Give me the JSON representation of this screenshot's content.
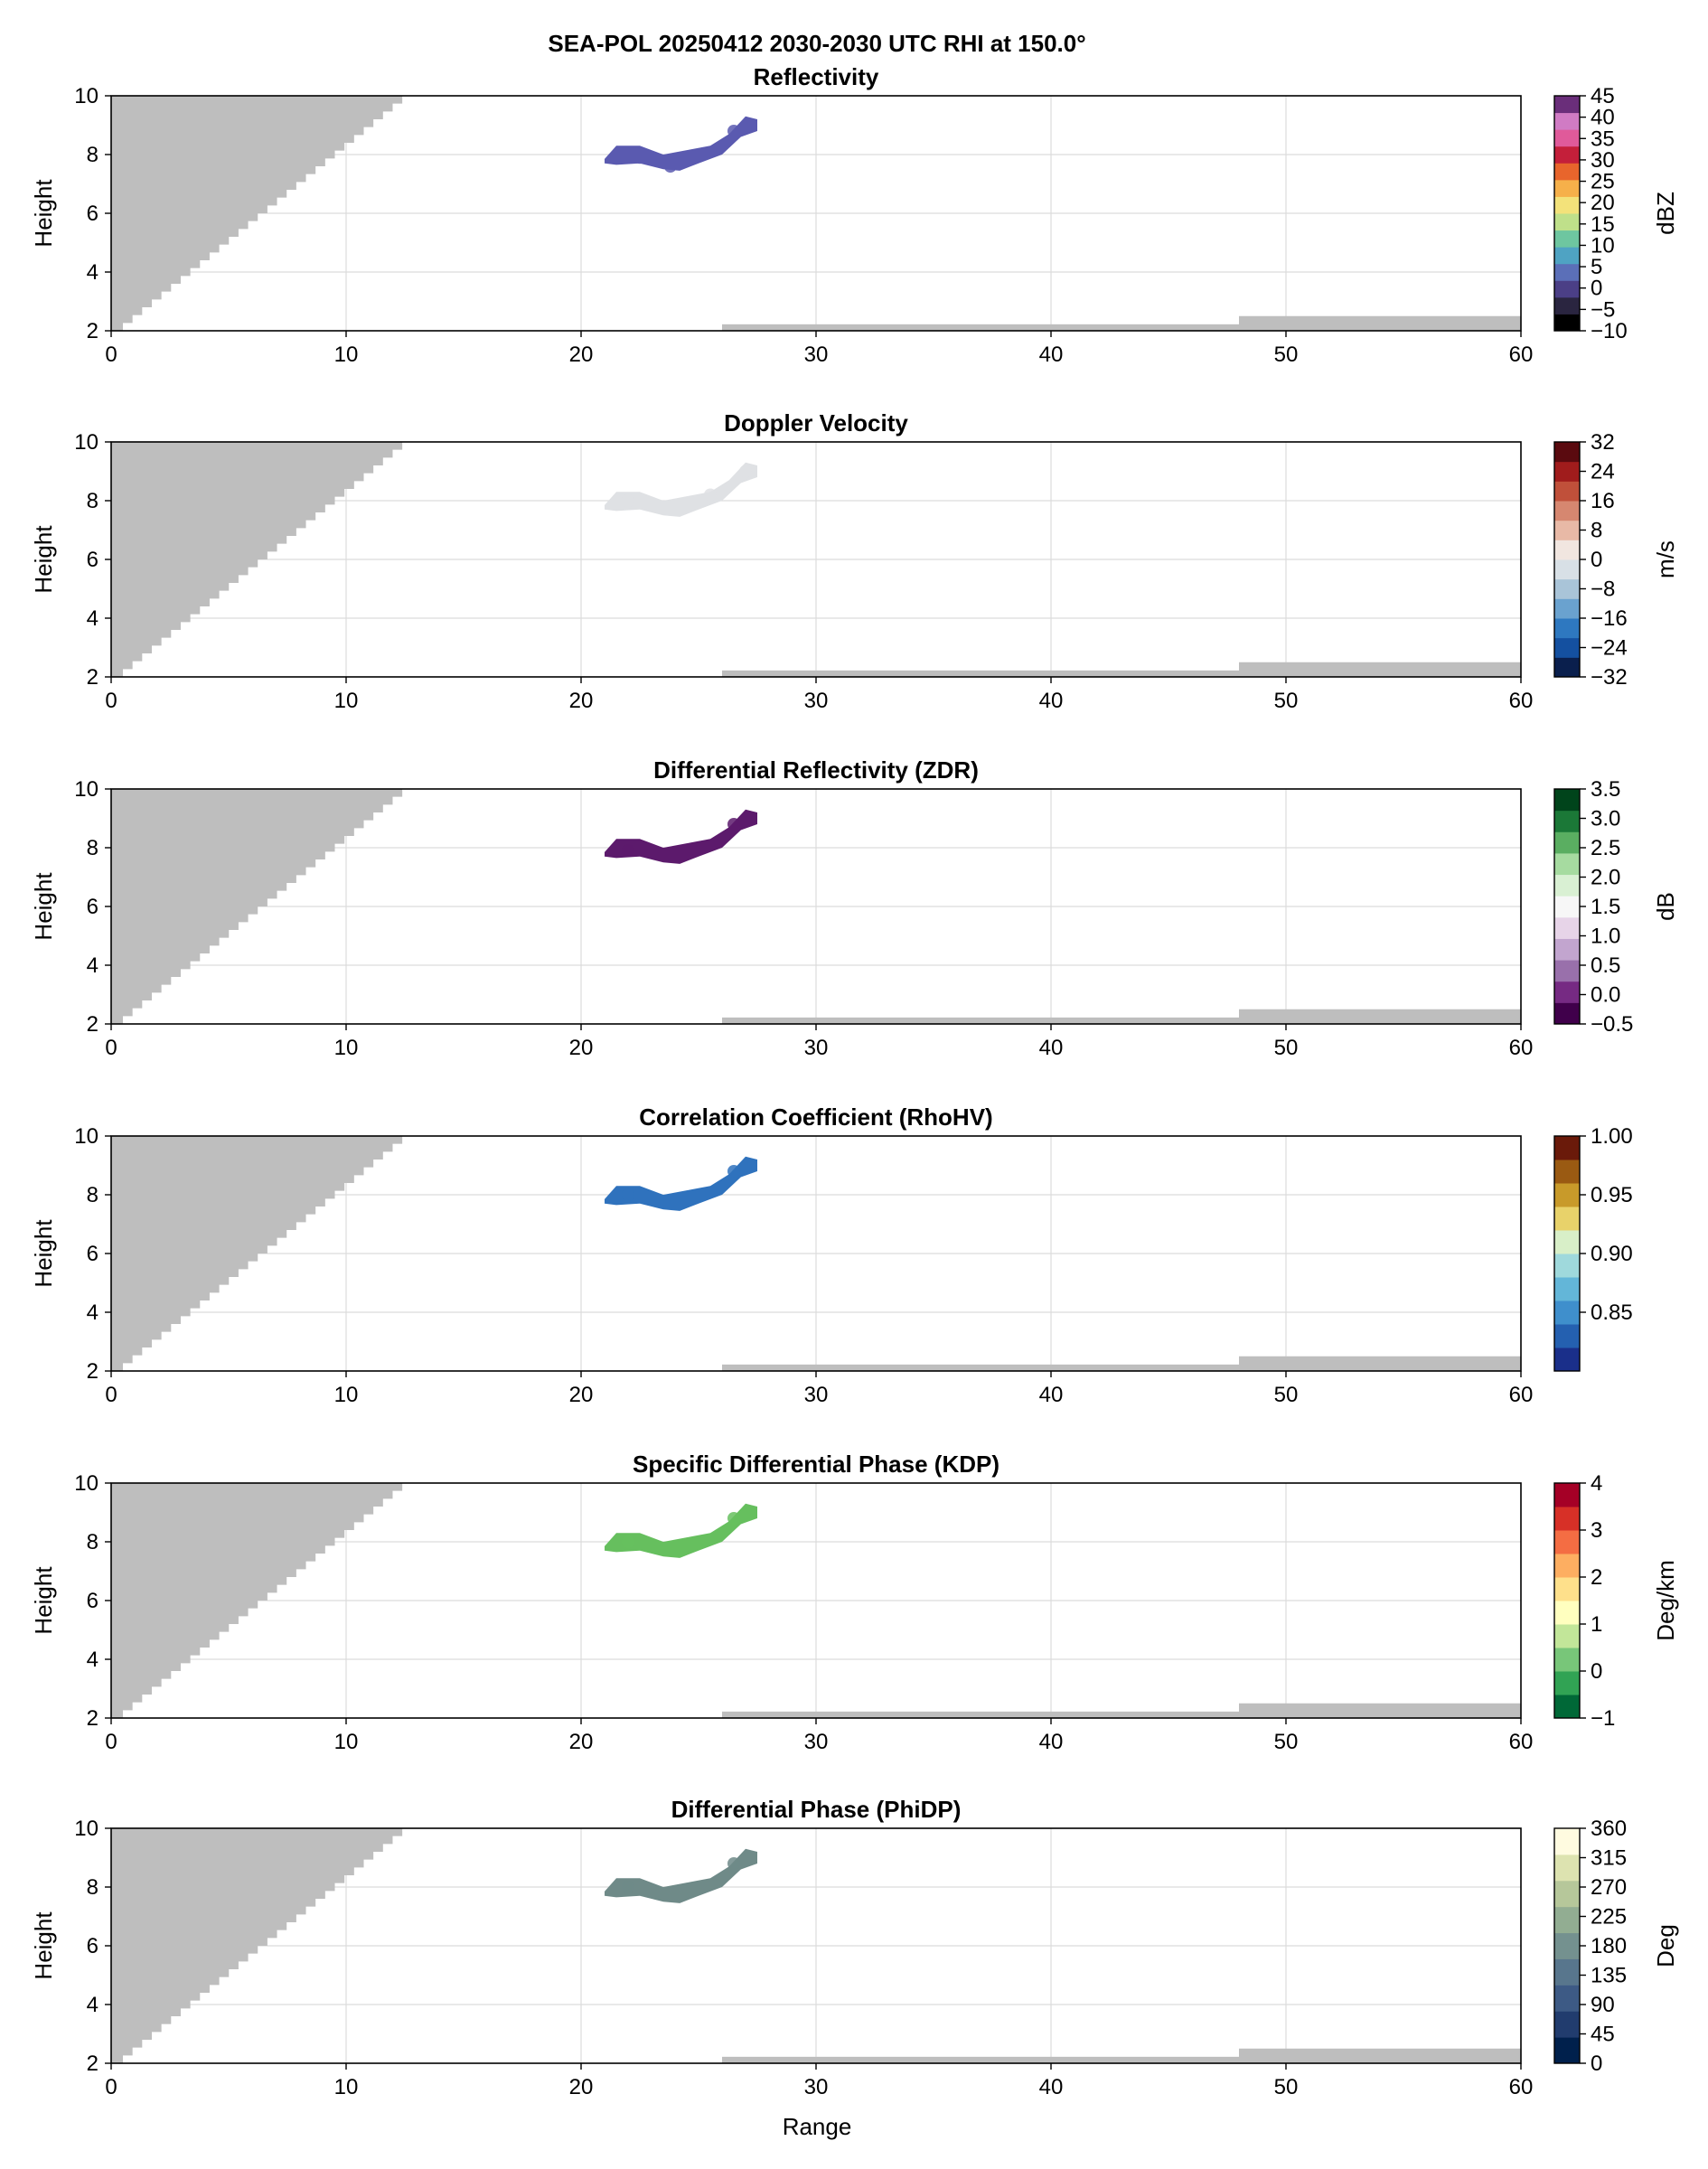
{
  "figure": {
    "title": "SEA-POL 20250412 2030-2030 UTC RHI at 150.0°",
    "xlabel": "Range"
  },
  "chart_data": [
    {
      "type": "heatmap",
      "title": "Reflectivity",
      "xlabel": "",
      "ylabel": "Height",
      "xlim": [
        0,
        60
      ],
      "ylim": [
        2,
        10
      ],
      "xticks": [
        "0",
        "10",
        "20",
        "30",
        "40",
        "50",
        "60"
      ],
      "yticks": [
        "2",
        "4",
        "6",
        "8",
        "10"
      ],
      "grid": true,
      "colorbar": {
        "label": "dBZ",
        "ticks": [
          "45",
          "40",
          "35",
          "30",
          "25",
          "20",
          "15",
          "10",
          "5",
          "0",
          "−5",
          "−10"
        ],
        "range": [
          -10,
          45
        ],
        "colors": [
          "#000000",
          "#2a2540",
          "#4b3f86",
          "#5b6fb8",
          "#4fa3c3",
          "#6ec6a0",
          "#bfe08a",
          "#f3e27a",
          "#f6b04a",
          "#e8652c",
          "#c41f3a",
          "#e05a9a",
          "#d07bc4",
          "#6a2e7a"
        ]
      },
      "echo_color": "#5a5ab0",
      "echo_cells": [
        {
          "range": 22.5,
          "height": 7.9,
          "value": 5
        },
        {
          "range": 23.8,
          "height": 7.6,
          "value": 8
        },
        {
          "range": 26.5,
          "height": 8.8,
          "value": 2
        }
      ]
    },
    {
      "type": "heatmap",
      "title": "Doppler Velocity",
      "xlabel": "",
      "ylabel": "Height",
      "xlim": [
        0,
        60
      ],
      "ylim": [
        2,
        10
      ],
      "xticks": [
        "0",
        "10",
        "20",
        "30",
        "40",
        "50",
        "60"
      ],
      "yticks": [
        "2",
        "4",
        "6",
        "8",
        "10"
      ],
      "grid": true,
      "colorbar": {
        "label": "m/s",
        "ticks": [
          "32",
          "24",
          "16",
          "8",
          "0",
          "−8",
          "−16",
          "−24",
          "−32"
        ],
        "range": [
          -32,
          32
        ],
        "colors": [
          "#0a1f4d",
          "#1450a0",
          "#2e78c0",
          "#6aa2cf",
          "#a9c4d8",
          "#d8e0e6",
          "#f1e6e0",
          "#e8b9a6",
          "#d68770",
          "#c0503a",
          "#a01c1c",
          "#5a0a0f"
        ]
      },
      "echo_color": "#dfe1e4",
      "echo_cells": [
        {
          "range": 22.0,
          "height": 8.0,
          "value": 2
        },
        {
          "range": 25.5,
          "height": 8.2,
          "value": -2
        },
        {
          "range": 27.0,
          "height": 9.0,
          "value": 3
        }
      ]
    },
    {
      "type": "heatmap",
      "title": "Differential Reflectivity (ZDR)",
      "xlabel": "",
      "ylabel": "Height",
      "xlim": [
        0,
        60
      ],
      "ylim": [
        2,
        10
      ],
      "xticks": [
        "0",
        "10",
        "20",
        "30",
        "40",
        "50",
        "60"
      ],
      "yticks": [
        "2",
        "4",
        "6",
        "8",
        "10"
      ],
      "grid": true,
      "colorbar": {
        "label": "dB",
        "ticks": [
          "3.5",
          "3.0",
          "2.5",
          "2.0",
          "1.5",
          "1.0",
          "0.5",
          "0.0",
          "−0.5"
        ],
        "range": [
          -0.5,
          3.5
        ],
        "colors": [
          "#40004b",
          "#762a83",
          "#9970ab",
          "#c2a5cf",
          "#e7d4e8",
          "#f7f7f7",
          "#d9f0d3",
          "#a6dba0",
          "#5aae61",
          "#1b7837",
          "#00441b"
        ]
      },
      "echo_color": "#5c1a6c",
      "echo_cells": [
        {
          "range": 22.0,
          "height": 7.9,
          "value": -0.3
        },
        {
          "range": 26.5,
          "height": 8.8,
          "value": 0.0
        }
      ]
    },
    {
      "type": "heatmap",
      "title": "Correlation Coefficient (RhoHV)",
      "xlabel": "",
      "ylabel": "Height",
      "xlim": [
        0,
        60
      ],
      "ylim": [
        2,
        10
      ],
      "xticks": [
        "0",
        "10",
        "20",
        "30",
        "40",
        "50",
        "60"
      ],
      "yticks": [
        "2",
        "4",
        "6",
        "8",
        "10"
      ],
      "grid": true,
      "colorbar": {
        "label": "",
        "ticks": [
          "1.00",
          "0.95",
          "0.90",
          "0.85"
        ],
        "range": [
          0.8,
          1.0
        ],
        "tick_values": [
          1.0,
          0.95,
          0.9,
          0.85
        ],
        "colors": [
          "#1a2f8a",
          "#2460b0",
          "#3f8fcc",
          "#63b6d8",
          "#9fd9dc",
          "#d8efc8",
          "#e8d26a",
          "#c89a2a",
          "#9a5a12",
          "#6a1a0a"
        ]
      },
      "echo_color": "#2f72bd",
      "echo_cells": [
        {
          "range": 22.0,
          "height": 8.0,
          "value": 0.87
        },
        {
          "range": 26.5,
          "height": 8.8,
          "value": 0.86
        }
      ]
    },
    {
      "type": "heatmap",
      "title": "Specific Differential Phase (KDP)",
      "xlabel": "",
      "ylabel": "Height",
      "xlim": [
        0,
        60
      ],
      "ylim": [
        2,
        10
      ],
      "xticks": [
        "0",
        "10",
        "20",
        "30",
        "40",
        "50",
        "60"
      ],
      "yticks": [
        "2",
        "4",
        "6",
        "8",
        "10"
      ],
      "grid": true,
      "colorbar": {
        "label": "Deg/km",
        "ticks": [
          "4",
          "3",
          "2",
          "1",
          "0",
          "−1"
        ],
        "range": [
          -1,
          4
        ],
        "colors": [
          "#006837",
          "#31a354",
          "#78c679",
          "#c2e699",
          "#ffffbf",
          "#fee08b",
          "#fdae61",
          "#f46d43",
          "#d73027",
          "#a50026"
        ]
      },
      "echo_color": "#66bf5e",
      "echo_cells": [
        {
          "range": 22.0,
          "height": 8.0,
          "value": 0
        },
        {
          "range": 26.5,
          "height": 8.8,
          "value": 0
        }
      ]
    },
    {
      "type": "heatmap",
      "title": "Differential Phase (PhiDP)",
      "xlabel": "",
      "ylabel": "Height",
      "xlim": [
        0,
        60
      ],
      "ylim": [
        2,
        10
      ],
      "xticks": [
        "0",
        "10",
        "20",
        "30",
        "40",
        "50",
        "60"
      ],
      "yticks": [
        "2",
        "4",
        "6",
        "8",
        "10"
      ],
      "grid": true,
      "colorbar": {
        "label": "Deg",
        "ticks": [
          "360",
          "315",
          "270",
          "225",
          "180",
          "135",
          "90",
          "45",
          "0"
        ],
        "range": [
          0,
          360
        ],
        "colors": [
          "#00204c",
          "#213c6e",
          "#3d5a85",
          "#58768d",
          "#74918f",
          "#92ad92",
          "#b6c79a",
          "#dde3b0",
          "#fffbe0"
        ]
      },
      "echo_color": "#6f8a88",
      "echo_cells": [
        {
          "range": 22.0,
          "height": 8.0,
          "value": 160
        },
        {
          "range": 26.5,
          "height": 8.8,
          "value": 165
        }
      ]
    }
  ]
}
